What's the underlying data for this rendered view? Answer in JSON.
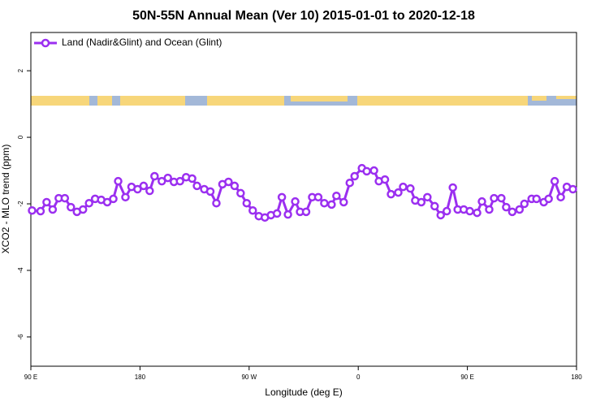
{
  "chart_data": {
    "type": "line",
    "title": "50N-55N Annual Mean (Ver 10)   2015-01-01 to 2020-12-18",
    "xlabel": "Longitude (deg E)",
    "ylabel": "XCO2 - MLO trend (ppm)",
    "legend": "top-left",
    "xlim": [
      90,
      540
    ],
    "xticks": [
      {
        "value": 90,
        "label": "90 E"
      },
      180,
      {
        "value": 270,
        "label": "90 W"
      },
      {
        "value": 360,
        "label": "0"
      },
      {
        "value": 450,
        "label": "90 E"
      },
      {
        "value": 540,
        "label": "180"
      }
    ],
    "ylim": [
      -6.88,
      3.15
    ],
    "yticks": [
      -6,
      -4,
      -2,
      0,
      2
    ],
    "series": [
      {
        "name": "Land (Nadir&Glint) and Ocean (Glint)",
        "color": "#9b2ff0",
        "x": [
          91,
          98,
          103,
          108,
          113,
          118,
          123,
          128,
          133,
          138,
          143,
          148,
          153,
          158,
          162,
          168,
          173,
          178,
          183,
          188,
          192,
          198,
          203,
          208,
          213,
          218,
          223,
          227,
          233,
          238,
          243,
          248,
          253,
          258,
          263,
          268,
          273,
          278,
          283,
          288,
          293,
          297,
          302,
          308,
          312,
          317,
          322,
          327,
          332,
          338,
          342,
          348,
          353,
          357,
          363,
          367,
          373,
          377,
          382,
          387,
          393,
          397,
          403,
          407,
          412,
          417,
          423,
          428,
          433,
          438,
          442,
          447,
          452,
          458,
          462,
          468,
          472,
          478,
          482,
          487,
          493,
          497,
          503,
          507,
          513,
          517,
          522,
          527,
          532,
          537
        ],
        "values": [
          -2.2,
          -2.22,
          -1.95,
          -2.17,
          -1.83,
          -1.83,
          -2.1,
          -2.24,
          -2.17,
          -1.98,
          -1.85,
          -1.88,
          -1.95,
          -1.85,
          -1.32,
          -1.8,
          -1.49,
          -1.56,
          -1.46,
          -1.61,
          -1.17,
          -1.32,
          -1.22,
          -1.34,
          -1.32,
          -1.2,
          -1.24,
          -1.46,
          -1.56,
          -1.63,
          -1.98,
          -1.41,
          -1.34,
          -1.46,
          -1.68,
          -1.98,
          -2.2,
          -2.37,
          -2.41,
          -2.34,
          -2.29,
          -1.8,
          -2.32,
          -1.93,
          -2.24,
          -2.24,
          -1.8,
          -1.8,
          -1.98,
          -2.02,
          -1.76,
          -1.95,
          -1.37,
          -1.17,
          -0.93,
          -1.02,
          -1.0,
          -1.32,
          -1.27,
          -1.71,
          -1.66,
          -1.49,
          -1.54,
          -1.9,
          -1.95,
          -1.8,
          -2.07,
          -2.34,
          -2.22,
          -1.51,
          -2.17,
          -2.17,
          -2.22,
          -2.27,
          -1.93,
          -2.17,
          -1.83,
          -1.83,
          -2.1,
          -2.24,
          -2.17,
          -2.0,
          -1.85,
          -1.85,
          -1.95,
          -1.85,
          -1.32,
          -1.8,
          -1.49,
          -1.56
        ]
      }
    ]
  }
}
